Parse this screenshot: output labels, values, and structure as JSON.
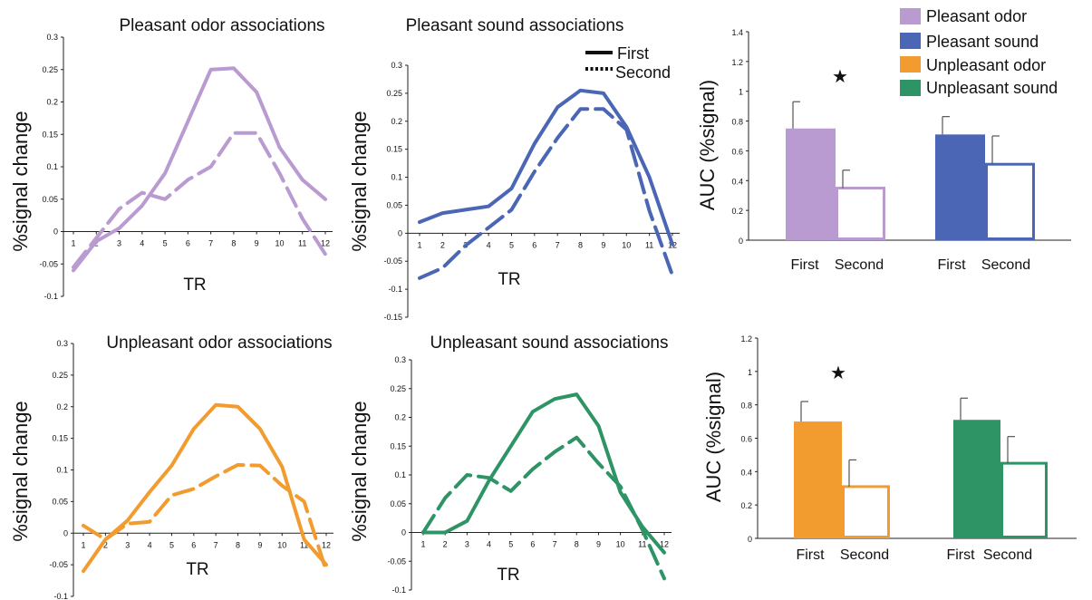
{
  "legend_lines": {
    "first": "First",
    "second": "Second"
  },
  "legend_bars": [
    "Pleasant odor",
    "Pleasant sound",
    "Unpleasant odor",
    "Unpleasant sound"
  ],
  "chart_data": [
    {
      "type": "line",
      "title": "Pleasant odor associations",
      "xlabel": "TR",
      "ylabel": "%signal change",
      "color": "#b99ad1",
      "x": [
        1,
        2,
        3,
        4,
        5,
        6,
        7,
        8,
        9,
        10,
        11,
        12
      ],
      "ylim": [
        -0.1,
        0.3
      ],
      "yticks": [
        -0.1,
        -0.05,
        0,
        0.05,
        0.1,
        0.15,
        0.2,
        0.25,
        0.3
      ],
      "series": [
        {
          "name": "First",
          "style": "solid",
          "values": [
            -0.06,
            -0.015,
            0.005,
            0.04,
            0.09,
            0.17,
            0.25,
            0.252,
            0.215,
            0.13,
            0.08,
            0.05
          ]
        },
        {
          "name": "Second",
          "style": "dashed",
          "values": [
            -0.055,
            -0.01,
            0.035,
            0.06,
            0.05,
            0.08,
            0.1,
            0.152,
            0.152,
            0.09,
            0.02,
            -0.035
          ]
        }
      ]
    },
    {
      "type": "line",
      "title": "Pleasant sound associations",
      "xlabel": "TR",
      "ylabel": "%signal change",
      "color": "#4a66b5",
      "x": [
        1,
        2,
        3,
        4,
        5,
        6,
        7,
        8,
        9,
        10,
        11,
        12
      ],
      "ylim": [
        -0.15,
        0.3
      ],
      "yticks": [
        -0.15,
        -0.1,
        -0.05,
        0,
        0.05,
        0.1,
        0.15,
        0.2,
        0.25,
        0.3
      ],
      "series": [
        {
          "name": "First",
          "style": "solid",
          "values": [
            0.02,
            0.036,
            0.042,
            0.048,
            0.08,
            0.16,
            0.225,
            0.255,
            0.25,
            0.19,
            0.1,
            -0.02
          ]
        },
        {
          "name": "Second",
          "style": "dashed",
          "values": [
            -0.08,
            -0.062,
            -0.022,
            0.01,
            0.042,
            0.11,
            0.17,
            0.222,
            0.222,
            0.185,
            0.04,
            -0.075
          ]
        }
      ]
    },
    {
      "type": "line",
      "title": "Unpleasant odor associations",
      "xlabel": "TR",
      "ylabel": "%signal change",
      "color": "#f29b2f",
      "x": [
        1,
        2,
        3,
        4,
        5,
        6,
        7,
        8,
        9,
        10,
        11,
        12
      ],
      "ylim": [
        -0.1,
        0.3
      ],
      "yticks": [
        -0.1,
        -0.05,
        0,
        0.05,
        0.1,
        0.15,
        0.2,
        0.25,
        0.3
      ],
      "series": [
        {
          "name": "First",
          "style": "solid",
          "values": [
            -0.06,
            -0.01,
            0.02,
            0.065,
            0.107,
            0.165,
            0.203,
            0.2,
            0.165,
            0.105,
            -0.01,
            -0.05
          ]
        },
        {
          "name": "Second",
          "style": "dashed",
          "values": [
            0.012,
            -0.01,
            0.015,
            0.018,
            0.06,
            0.07,
            0.09,
            0.108,
            0.107,
            0.075,
            0.05,
            -0.06
          ]
        }
      ]
    },
    {
      "type": "line",
      "title": "Unpleasant sound associations",
      "xlabel": "TR",
      "ylabel": "%signal change",
      "color": "#2e9466",
      "x": [
        1,
        2,
        3,
        4,
        5,
        6,
        7,
        8,
        9,
        10,
        11,
        12
      ],
      "ylim": [
        -0.1,
        0.3
      ],
      "yticks": [
        -0.1,
        -0.05,
        0,
        0.05,
        0.1,
        0.15,
        0.2,
        0.25,
        0.3
      ],
      "series": [
        {
          "name": "First",
          "style": "solid",
          "values": [
            0,
            0,
            0.02,
            0.09,
            0.15,
            0.21,
            0.232,
            0.24,
            0.185,
            0.07,
            0.01,
            -0.035
          ]
        },
        {
          "name": "Second",
          "style": "dashed",
          "values": [
            0,
            0.06,
            0.1,
            0.095,
            0.072,
            0.11,
            0.14,
            0.165,
            0.12,
            0.08,
            0.005,
            -0.08
          ]
        }
      ]
    },
    {
      "type": "bar",
      "ylabel": "AUC (%signal)",
      "ylim": [
        0,
        1.4
      ],
      "yticks": [
        0,
        0.2,
        0.4,
        0.6,
        0.8,
        1,
        1.2,
        1.4
      ],
      "categories": [
        "First",
        "Second",
        "First",
        "Second"
      ],
      "colors": [
        "#b99ad1",
        "#4a66b5"
      ],
      "groups": [
        {
          "name": "Pleasant odor",
          "values": [
            0.75,
            0.35
          ],
          "errors": [
            0.18,
            0.12
          ]
        },
        {
          "name": "Pleasant sound",
          "values": [
            0.71,
            0.51
          ],
          "errors": [
            0.12,
            0.19
          ]
        }
      ],
      "annotation": "★"
    },
    {
      "type": "bar",
      "ylabel": "AUC (%signal)",
      "ylim": [
        0,
        1.2
      ],
      "yticks": [
        0,
        0.2,
        0.4,
        0.6,
        0.8,
        1,
        1.2
      ],
      "categories": [
        "First",
        "Second",
        "First",
        "Second"
      ],
      "colors": [
        "#f29b2f",
        "#2e9466"
      ],
      "groups": [
        {
          "name": "Unpleasant odor",
          "values": [
            0.7,
            0.31
          ],
          "errors": [
            0.12,
            0.16
          ]
        },
        {
          "name": "Unpleasant sound",
          "values": [
            0.71,
            0.45
          ],
          "errors": [
            0.13,
            0.16
          ]
        }
      ],
      "annotation": "★"
    }
  ]
}
